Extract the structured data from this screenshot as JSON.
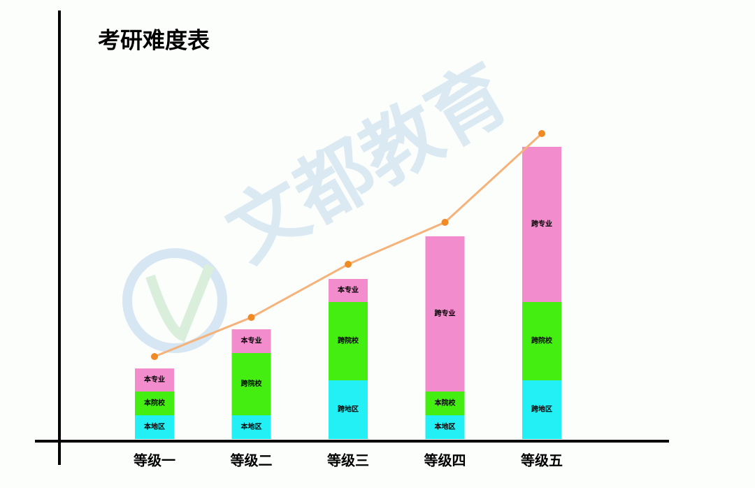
{
  "chart_data": {
    "type": "bar",
    "stacked": true,
    "title": "考研难度表",
    "watermark": "文都教育",
    "categories": [
      "等级一",
      "等级二",
      "等级三",
      "等级四",
      "等级五"
    ],
    "ylim": [
      0,
      440
    ],
    "series": [
      {
        "color": "#22f0f4",
        "values": [
          34,
          34,
          84,
          34,
          84
        ],
        "labels": [
          "本地区",
          "本地区",
          "跨地区",
          "本地区",
          "跨地区"
        ]
      },
      {
        "color": "#44ee11",
        "values": [
          34,
          89,
          112,
          34,
          112
        ],
        "labels": [
          "本院校",
          "跨院校",
          "跨院校",
          "本院校",
          "跨院校"
        ]
      },
      {
        "color": "#f28ccc",
        "values": [
          33,
          34,
          33,
          222,
          222
        ],
        "labels": [
          "本专业",
          "本专业",
          "本专业",
          "跨专业",
          "跨专业"
        ]
      }
    ],
    "line": {
      "color": "#f5b27a",
      "marker_color": "#f08a24",
      "values": [
        118,
        174,
        250,
        310,
        437
      ]
    }
  }
}
